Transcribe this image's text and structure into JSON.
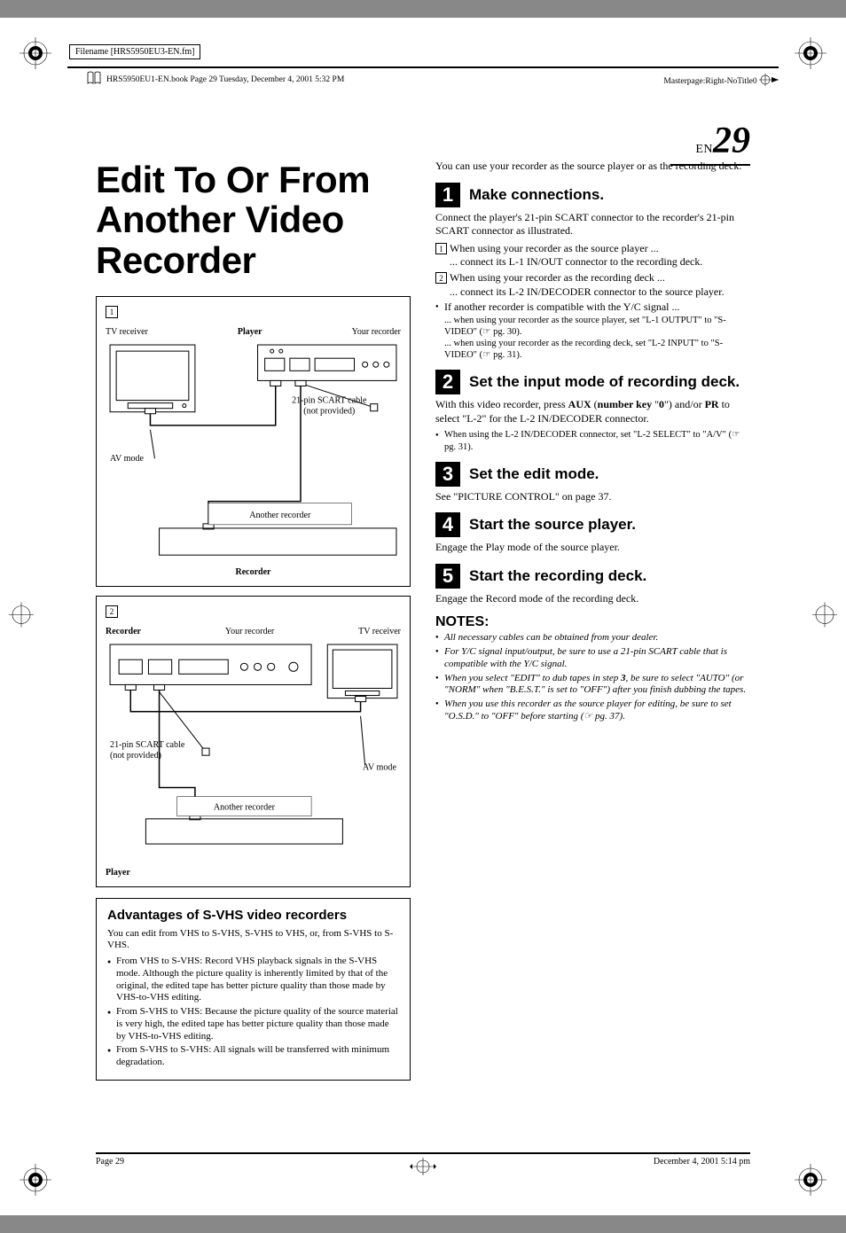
{
  "meta": {
    "filename": "Filename [HRS5950EU3-EN.fm]",
    "book_header": "HRS5950EU1-EN.book  Page 29  Tuesday, December 4, 2001  5:32 PM",
    "masterpage": "Masterpage:Right-NoTitle0",
    "footer_left": "Page 29",
    "footer_right": "December 4, 2001 5:14 pm"
  },
  "page_number": {
    "prefix": "EN",
    "num": "29"
  },
  "title": "Edit To Or From Another Video Recorder",
  "diagram1": {
    "num": "1",
    "labels": {
      "left": "TV receiver",
      "center": "Player",
      "right": "Your recorder"
    },
    "cable": "21-pin SCART cable\n(not provided)",
    "avmode": "AV mode",
    "another": "Another recorder",
    "caption": "Recorder"
  },
  "diagram2": {
    "num": "2",
    "labels": {
      "left": "Recorder",
      "center": "Your recorder",
      "right": "TV receiver"
    },
    "cable": "21-pin SCART cable\n(not provided)",
    "avmode": "AV mode",
    "another": "Another recorder",
    "caption": "Player"
  },
  "advantages": {
    "title": "Advantages of S-VHS video recorders",
    "intro": "You can edit from VHS to S-VHS, S-VHS to VHS, or, from S-VHS to S-VHS.",
    "items": [
      "From VHS to S-VHS: Record VHS playback signals in the S-VHS mode. Although the picture quality is inherently limited by that of the original, the edited tape has better picture quality than those made by VHS-to-VHS editing.",
      "From S-VHS to VHS: Because the picture quality of the source material is very high, the edited tape has better picture quality than those made by VHS-to-VHS editing.",
      "From S-VHS to S-VHS: All signals will be transferred with minimum degradation."
    ]
  },
  "intro_right": "You can use your recorder as the source player or as the recording deck.",
  "steps": [
    {
      "n": "1",
      "title": "Make connections.",
      "body_p": "Connect the player's 21-pin SCART connector to the recorder's 21-pin SCART connector as illustrated.",
      "items": [
        {
          "type": "sq",
          "n": "1",
          "text": "When using your recorder as the source player ...\n... connect its L-1 IN/OUT connector to the recording deck."
        },
        {
          "type": "sq",
          "n": "2",
          "text": "When using your recorder as the recording deck ...\n... connect its L-2 IN/DECODER connector to the source player."
        },
        {
          "type": "dot",
          "text": "If another recorder is compatible with the Y/C signal ..."
        }
      ],
      "sub": [
        "... when using your recorder as the source player, set \"L-1 OUTPUT\" to \"S-VIDEO\" (☞ pg. 30).",
        "... when using your recorder as the recording deck, set \"L-2 INPUT\" to \"S-VIDEO\" (☞ pg. 31)."
      ]
    },
    {
      "n": "2",
      "title": "Set the input mode of recording deck.",
      "body_html": "With this video recorder, press <b>AUX</b> (<b>number key</b> \"<b>0</b>\") and/or <b>PR</b> to select \"L-2\" for the L-2 IN/DECODER connector.",
      "items": [
        {
          "type": "dot",
          "text": "When using the L-2 IN/DECODER connector, set \"L-2 SELECT\" to \"A/V\" (☞ pg. 31)."
        }
      ]
    },
    {
      "n": "3",
      "title": "Set the edit mode.",
      "body_p": "See \"PICTURE CONTROL\" on page 37."
    },
    {
      "n": "4",
      "title": "Start the source player.",
      "body_p": "Engage the Play mode of the source player."
    },
    {
      "n": "5",
      "title": "Start the recording deck.",
      "body_p": "Engage the Record mode of the recording deck."
    }
  ],
  "notes": {
    "title": "NOTES:",
    "items": [
      "All necessary cables can be obtained from your dealer.",
      "For Y/C signal input/output, be sure to use a 21-pin SCART cable that is compatible with the Y/C signal.",
      "When you select \"EDIT\" to dub tapes in step 3, be sure to select \"AUTO\" (or \"NORM\" when \"B.E.S.T.\" is set to \"OFF\") after you finish dubbing the tapes.",
      "When you use this recorder as the source player for editing, be sure to set \"O.S.D.\" to \"OFF\" before starting (☞ pg. 37)."
    ]
  },
  "colors": {
    "text": "#000000",
    "bg": "#ffffff"
  }
}
